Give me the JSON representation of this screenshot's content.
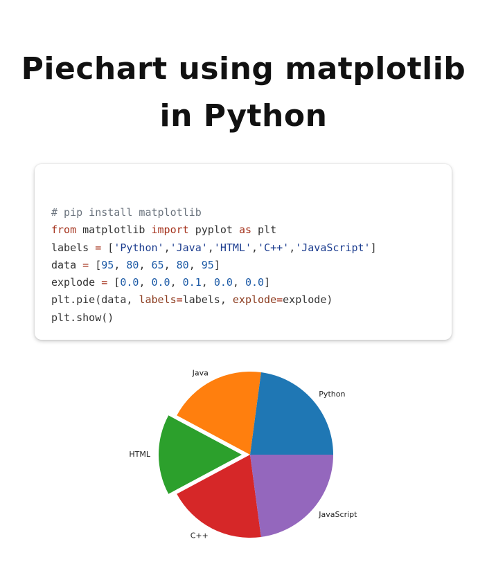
{
  "header": {
    "title_line1": "Piechart using matplotlib",
    "title_line2": "in Python"
  },
  "code": {
    "lines": [
      [
        {
          "t": "# pip install matplotlib",
          "k": "comment"
        }
      ],
      [
        {
          "t": "from",
          "k": "kw"
        },
        {
          "t": " matplotlib ",
          "k": "plain"
        },
        {
          "t": "import",
          "k": "kw"
        },
        {
          "t": " pyplot ",
          "k": "plain"
        },
        {
          "t": "as",
          "k": "kw"
        },
        {
          "t": " plt",
          "k": "plain"
        }
      ],
      [
        {
          "t": "labels ",
          "k": "plain"
        },
        {
          "t": "=",
          "k": "op"
        },
        {
          "t": " [",
          "k": "plain"
        },
        {
          "t": "'Python'",
          "k": "str"
        },
        {
          "t": ",",
          "k": "plain"
        },
        {
          "t": "'Java'",
          "k": "str"
        },
        {
          "t": ",",
          "k": "plain"
        },
        {
          "t": "'HTML'",
          "k": "str"
        },
        {
          "t": ",",
          "k": "plain"
        },
        {
          "t": "'C++'",
          "k": "str"
        },
        {
          "t": ",",
          "k": "plain"
        },
        {
          "t": "'JavaScript'",
          "k": "str"
        },
        {
          "t": "]",
          "k": "plain"
        }
      ],
      [
        {
          "t": "data ",
          "k": "plain"
        },
        {
          "t": "=",
          "k": "op"
        },
        {
          "t": " [",
          "k": "plain"
        },
        {
          "t": "95",
          "k": "num"
        },
        {
          "t": ", ",
          "k": "plain"
        },
        {
          "t": "80",
          "k": "num"
        },
        {
          "t": ", ",
          "k": "plain"
        },
        {
          "t": "65",
          "k": "num"
        },
        {
          "t": ", ",
          "k": "plain"
        },
        {
          "t": "80",
          "k": "num"
        },
        {
          "t": ", ",
          "k": "plain"
        },
        {
          "t": "95",
          "k": "num"
        },
        {
          "t": "]",
          "k": "plain"
        }
      ],
      [
        {
          "t": "explode ",
          "k": "plain"
        },
        {
          "t": "=",
          "k": "op"
        },
        {
          "t": " [",
          "k": "plain"
        },
        {
          "t": "0.0",
          "k": "num"
        },
        {
          "t": ", ",
          "k": "plain"
        },
        {
          "t": "0.0",
          "k": "num"
        },
        {
          "t": ", ",
          "k": "plain"
        },
        {
          "t": "0.1",
          "k": "num"
        },
        {
          "t": ", ",
          "k": "plain"
        },
        {
          "t": "0.0",
          "k": "num"
        },
        {
          "t": ", ",
          "k": "plain"
        },
        {
          "t": "0.0",
          "k": "num"
        },
        {
          "t": "]",
          "k": "plain"
        }
      ],
      [
        {
          "t": "plt.pie(data, ",
          "k": "plain"
        },
        {
          "t": "labels",
          "k": "kwarg"
        },
        {
          "t": "=",
          "k": "op"
        },
        {
          "t": "labels, ",
          "k": "plain"
        },
        {
          "t": "explode",
          "k": "kwarg"
        },
        {
          "t": "=",
          "k": "op"
        },
        {
          "t": "explode)",
          "k": "plain"
        }
      ],
      [
        {
          "t": "plt.show()",
          "k": "plain"
        }
      ]
    ]
  },
  "chart_data": {
    "type": "pie",
    "labels": [
      "Python",
      "Java",
      "HTML",
      "C++",
      "JavaScript"
    ],
    "values": [
      95,
      80,
      65,
      80,
      95
    ],
    "explode": [
      0.0,
      0.0,
      0.1,
      0.0,
      0.0
    ],
    "colors": [
      "#1f77b4",
      "#ff7f0e",
      "#2ca02c",
      "#d62728",
      "#9467bd"
    ],
    "start_angle": 0,
    "direction": "counterclockwise"
  }
}
